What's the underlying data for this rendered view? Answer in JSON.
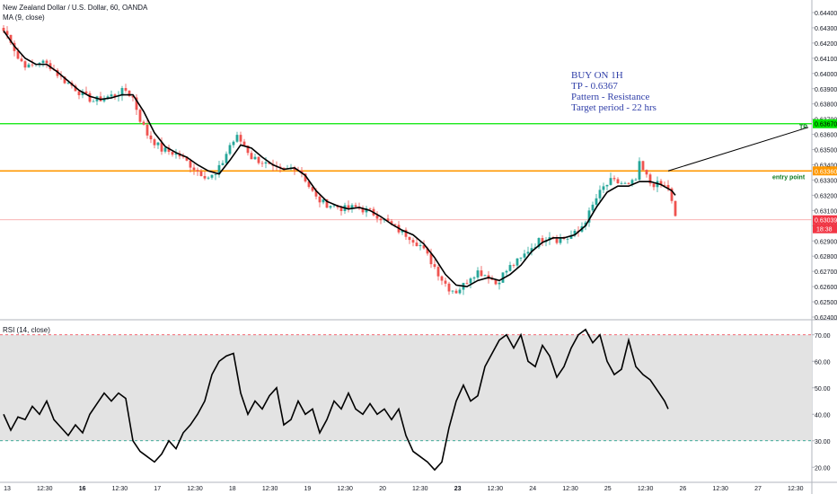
{
  "header": {
    "symbol_title": "New Zealand Dollar / U.S. Dollar, 60, OANDA",
    "ma_label": "MA (9, close)",
    "rsi_label": "RSI (14, close)"
  },
  "annotation": {
    "lines": [
      "BUY ON 1H",
      "TP - 0.6367",
      "Pattern - Resistance",
      "Target period - 22 hrs"
    ]
  },
  "levels": {
    "tp": {
      "label": "TP",
      "price": 0.6367,
      "price_text": "0.63670",
      "color": "#00e600"
    },
    "entry": {
      "label": "entry point",
      "price": 0.6336,
      "price_text": "0.63360",
      "color": "#ff9800"
    },
    "current": {
      "price": 0.63039,
      "price_text": "0.63039",
      "countdown": "18:38",
      "color": "#f23645"
    }
  },
  "price_axis": {
    "min": 0.624,
    "max": 0.644,
    "ticks": [
      "0.64400",
      "0.64300",
      "0.64200",
      "0.64100",
      "0.64000",
      "0.63900",
      "0.63800",
      "0.63700",
      "0.63600",
      "0.63500",
      "0.63400",
      "0.63300",
      "0.63200",
      "0.63100",
      "0.63000",
      "0.62900",
      "0.62800",
      "0.62700",
      "0.62600",
      "0.62500",
      "0.62400"
    ]
  },
  "rsi_axis": {
    "min": 15,
    "max": 75,
    "ticks": [
      "70.00",
      "60.00",
      "50.00",
      "40.00",
      "30.00",
      "20.00"
    ],
    "upper_band": 70,
    "lower_band": 30
  },
  "time_axis": {
    "labels": [
      "13",
      "12:30",
      "16",
      "12:30",
      "17",
      "12:30",
      "18",
      "12:30",
      "19",
      "12:30",
      "20",
      "12:30",
      "23",
      "12:30",
      "24",
      "12:30",
      "25",
      "12:30",
      "26",
      "12:30",
      "27",
      "12:30"
    ],
    "bold": [
      "16",
      "23"
    ]
  },
  "colors": {
    "up": "#26a69a",
    "down": "#ef5350",
    "ma": "#000000",
    "rsi": "#000000",
    "band_fill": "#e3e3e3",
    "axis_text": "#131722",
    "trendline": "#000000"
  },
  "chart_data": [
    {
      "type": "candlestick",
      "title": "New Zealand Dollar / U.S. Dollar, 60, OANDA",
      "ylim": [
        0.624,
        0.644
      ],
      "price_anchors": [
        [
          0,
          0.6428
        ],
        [
          2,
          0.6422
        ],
        [
          4,
          0.641
        ],
        [
          7,
          0.6404
        ],
        [
          10,
          0.6408
        ],
        [
          13,
          0.6405
        ],
        [
          16,
          0.6397
        ],
        [
          19,
          0.6392
        ],
        [
          22,
          0.6386
        ],
        [
          25,
          0.6382
        ],
        [
          28,
          0.6384
        ],
        [
          31,
          0.6386
        ],
        [
          34,
          0.6389
        ],
        [
          36,
          0.6384
        ],
        [
          38,
          0.637
        ],
        [
          40,
          0.636
        ],
        [
          42,
          0.6355
        ],
        [
          44,
          0.635
        ],
        [
          47,
          0.6348
        ],
        [
          49,
          0.6346
        ],
        [
          51,
          0.6342
        ],
        [
          54,
          0.6336
        ],
        [
          57,
          0.6332
        ],
        [
          59,
          0.6333
        ],
        [
          61,
          0.6342
        ],
        [
          63,
          0.6353
        ],
        [
          65,
          0.6358
        ],
        [
          67,
          0.6353
        ],
        [
          69,
          0.6345
        ],
        [
          72,
          0.6342
        ],
        [
          75,
          0.6337
        ],
        [
          78,
          0.6336
        ],
        [
          81,
          0.6339
        ],
        [
          83,
          0.6335
        ],
        [
          85,
          0.6326
        ],
        [
          87,
          0.6318
        ],
        [
          89,
          0.6315
        ],
        [
          92,
          0.6313
        ],
        [
          95,
          0.6311
        ],
        [
          98,
          0.6312
        ],
        [
          101,
          0.631
        ],
        [
          104,
          0.6307
        ],
        [
          107,
          0.6302
        ],
        [
          110,
          0.6297
        ],
        [
          113,
          0.6293
        ],
        [
          116,
          0.6287
        ],
        [
          118,
          0.628
        ],
        [
          120,
          0.6273
        ],
        [
          122,
          0.6265
        ],
        [
          124,
          0.6259
        ],
        [
          126,
          0.6257
        ],
        [
          128,
          0.6261
        ],
        [
          130,
          0.6267
        ],
        [
          132,
          0.627
        ],
        [
          135,
          0.6267
        ],
        [
          137,
          0.6262
        ],
        [
          139,
          0.6268
        ],
        [
          141,
          0.6273
        ],
        [
          144,
          0.6278
        ],
        [
          146,
          0.6284
        ],
        [
          149,
          0.629
        ],
        [
          152,
          0.6294
        ],
        [
          154,
          0.6291
        ],
        [
          157,
          0.6292
        ],
        [
          160,
          0.6296
        ],
        [
          163,
          0.6308
        ],
        [
          165,
          0.6318
        ],
        [
          167,
          0.6325
        ],
        [
          169,
          0.6329
        ],
        [
          172,
          0.6328
        ],
        [
          174,
          0.6326
        ],
        [
          176,
          0.633
        ],
        [
          177,
          0.634
        ],
        [
          178,
          0.6336
        ],
        [
          180,
          0.6328
        ],
        [
          182,
          0.6327
        ],
        [
          184,
          0.6326
        ],
        [
          185,
          0.6325
        ],
        [
          186,
          0.6315
        ],
        [
          187,
          0.6305
        ]
      ]
    },
    {
      "type": "line",
      "name": "MA (9, close)",
      "x_range": [
        0,
        187
      ],
      "points": [
        [
          0,
          0.6428
        ],
        [
          3,
          0.6418
        ],
        [
          6,
          0.641
        ],
        [
          9,
          0.6406
        ],
        [
          12,
          0.6406
        ],
        [
          15,
          0.6401
        ],
        [
          18,
          0.6395
        ],
        [
          21,
          0.6389
        ],
        [
          24,
          0.6385
        ],
        [
          27,
          0.6383
        ],
        [
          30,
          0.6384
        ],
        [
          33,
          0.6386
        ],
        [
          36,
          0.6386
        ],
        [
          39,
          0.6375
        ],
        [
          42,
          0.6361
        ],
        [
          45,
          0.6352
        ],
        [
          48,
          0.6348
        ],
        [
          51,
          0.6345
        ],
        [
          54,
          0.634
        ],
        [
          57,
          0.6336
        ],
        [
          60,
          0.6334
        ],
        [
          63,
          0.6343
        ],
        [
          66,
          0.6353
        ],
        [
          69,
          0.6351
        ],
        [
          72,
          0.6345
        ],
        [
          75,
          0.634
        ],
        [
          78,
          0.6337
        ],
        [
          81,
          0.6338
        ],
        [
          84,
          0.6333
        ],
        [
          87,
          0.6323
        ],
        [
          90,
          0.6316
        ],
        [
          93,
          0.6313
        ],
        [
          96,
          0.6311
        ],
        [
          99,
          0.6312
        ],
        [
          102,
          0.631
        ],
        [
          105,
          0.6306
        ],
        [
          108,
          0.6301
        ],
        [
          111,
          0.6297
        ],
        [
          114,
          0.6294
        ],
        [
          117,
          0.6288
        ],
        [
          120,
          0.6279
        ],
        [
          123,
          0.6268
        ],
        [
          126,
          0.6261
        ],
        [
          129,
          0.626
        ],
        [
          132,
          0.6264
        ],
        [
          135,
          0.6266
        ],
        [
          138,
          0.6264
        ],
        [
          141,
          0.6268
        ],
        [
          144,
          0.6274
        ],
        [
          147,
          0.6283
        ],
        [
          150,
          0.6289
        ],
        [
          153,
          0.6292
        ],
        [
          156,
          0.6292
        ],
        [
          159,
          0.6294
        ],
        [
          162,
          0.63
        ],
        [
          165,
          0.6312
        ],
        [
          168,
          0.6322
        ],
        [
          171,
          0.6326
        ],
        [
          174,
          0.6326
        ],
        [
          177,
          0.6329
        ],
        [
          180,
          0.6329
        ],
        [
          183,
          0.6327
        ],
        [
          186,
          0.6323
        ],
        [
          187,
          0.632
        ]
      ]
    },
    {
      "type": "line",
      "name": "RSI (14, close)",
      "ylim": [
        15,
        75
      ],
      "points": [
        [
          0,
          40
        ],
        [
          2,
          34
        ],
        [
          4,
          39
        ],
        [
          6,
          38
        ],
        [
          8,
          43
        ],
        [
          10,
          40
        ],
        [
          12,
          45
        ],
        [
          14,
          38
        ],
        [
          16,
          35
        ],
        [
          18,
          32
        ],
        [
          20,
          36
        ],
        [
          22,
          33
        ],
        [
          24,
          40
        ],
        [
          26,
          44
        ],
        [
          28,
          48
        ],
        [
          30,
          45
        ],
        [
          32,
          48
        ],
        [
          34,
          46
        ],
        [
          36,
          30
        ],
        [
          38,
          26
        ],
        [
          40,
          24
        ],
        [
          42,
          22
        ],
        [
          44,
          25
        ],
        [
          46,
          30
        ],
        [
          48,
          27
        ],
        [
          50,
          33
        ],
        [
          52,
          36
        ],
        [
          54,
          40
        ],
        [
          56,
          45
        ],
        [
          58,
          55
        ],
        [
          60,
          60
        ],
        [
          62,
          62
        ],
        [
          64,
          63
        ],
        [
          66,
          48
        ],
        [
          68,
          40
        ],
        [
          70,
          45
        ],
        [
          72,
          42
        ],
        [
          74,
          47
        ],
        [
          76,
          50
        ],
        [
          78,
          36
        ],
        [
          80,
          38
        ],
        [
          82,
          45
        ],
        [
          84,
          40
        ],
        [
          86,
          42
        ],
        [
          88,
          33
        ],
        [
          90,
          38
        ],
        [
          92,
          45
        ],
        [
          94,
          42
        ],
        [
          96,
          48
        ],
        [
          98,
          42
        ],
        [
          100,
          40
        ],
        [
          102,
          44
        ],
        [
          104,
          40
        ],
        [
          106,
          42
        ],
        [
          108,
          38
        ],
        [
          110,
          42
        ],
        [
          112,
          32
        ],
        [
          114,
          26
        ],
        [
          116,
          24
        ],
        [
          118,
          22
        ],
        [
          120,
          19
        ],
        [
          122,
          22
        ],
        [
          124,
          35
        ],
        [
          126,
          45
        ],
        [
          128,
          51
        ],
        [
          130,
          45
        ],
        [
          132,
          47
        ],
        [
          134,
          58
        ],
        [
          136,
          63
        ],
        [
          138,
          68
        ],
        [
          140,
          70
        ],
        [
          142,
          65
        ],
        [
          144,
          70
        ],
        [
          146,
          60
        ],
        [
          148,
          58
        ],
        [
          150,
          66
        ],
        [
          152,
          62
        ],
        [
          154,
          54
        ],
        [
          156,
          58
        ],
        [
          158,
          65
        ],
        [
          160,
          70
        ],
        [
          162,
          72
        ],
        [
          164,
          67
        ],
        [
          166,
          70
        ],
        [
          168,
          60
        ],
        [
          170,
          55
        ],
        [
          172,
          57
        ],
        [
          174,
          68
        ],
        [
          176,
          58
        ],
        [
          178,
          55
        ],
        [
          180,
          53
        ],
        [
          182,
          49
        ],
        [
          184,
          45
        ],
        [
          185,
          42
        ]
      ]
    }
  ]
}
